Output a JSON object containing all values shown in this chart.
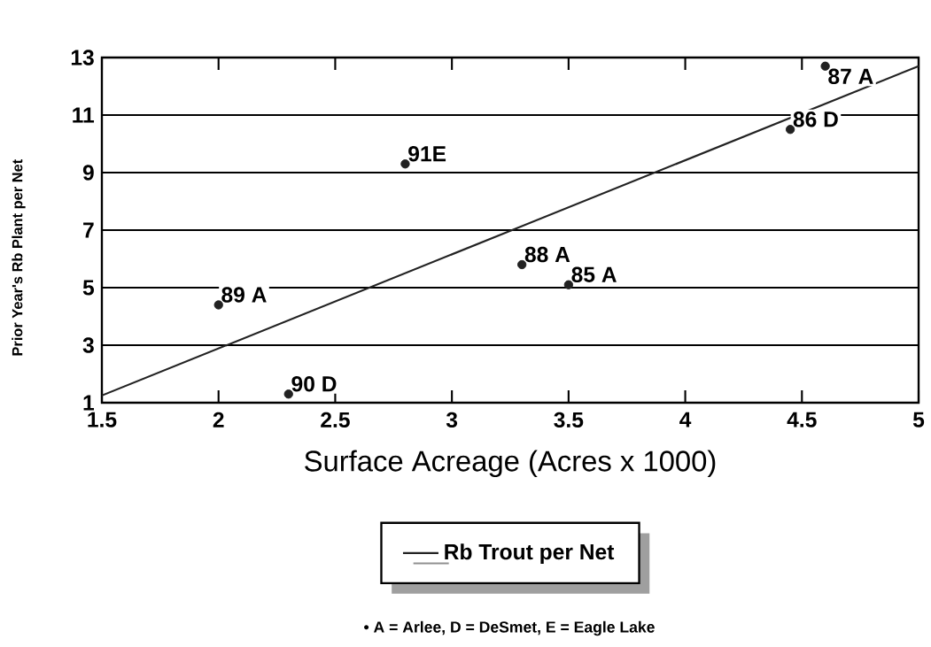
{
  "chart_data": {
    "type": "scatter",
    "ylabel": "Prior Year's Rb Plant per Net",
    "xlabel": "Surface Acreage (Acres x 1000)",
    "xlim": [
      1.5,
      5
    ],
    "xticks": [
      1.5,
      2,
      2.5,
      3,
      3.5,
      4,
      4.5,
      5
    ],
    "ylim": [
      1,
      13
    ],
    "yticks": [
      1,
      3,
      5,
      7,
      9,
      11,
      13
    ],
    "grid": "y",
    "legend": "bottom",
    "series": [
      {
        "type": "scatter",
        "color": "#222222",
        "x": [
          3.5,
          4.45,
          4.6,
          3.3,
          2.0,
          2.3,
          2.8
        ],
        "values": [
          5.1,
          10.5,
          12.7,
          5.8,
          4.4,
          1.3,
          9.3
        ]
      },
      {
        "type": "line",
        "name": "Rb Trout per Net",
        "color": "#222222",
        "line_style": "solid",
        "x": [
          1.5,
          5
        ],
        "values": [
          1.25,
          12.7
        ]
      }
    ],
    "annotations": [
      {
        "text": "85 A",
        "x": 3.5,
        "y": 5.1
      },
      {
        "text": "86 D",
        "x": 4.45,
        "y": 10.5
      },
      {
        "text": "87 A",
        "x": 4.6,
        "y": 12.7
      },
      {
        "text": "88 A",
        "x": 3.3,
        "y": 5.8
      },
      {
        "text": "89 A",
        "x": 2.0,
        "y": 4.4
      },
      {
        "text": "90 D",
        "x": 2.3,
        "y": 1.3
      },
      {
        "text": "91E",
        "x": 2.8,
        "y": 9.3
      },
      "• A = Arlee, D = DeSmet, E = Eagle Lake"
    ]
  }
}
